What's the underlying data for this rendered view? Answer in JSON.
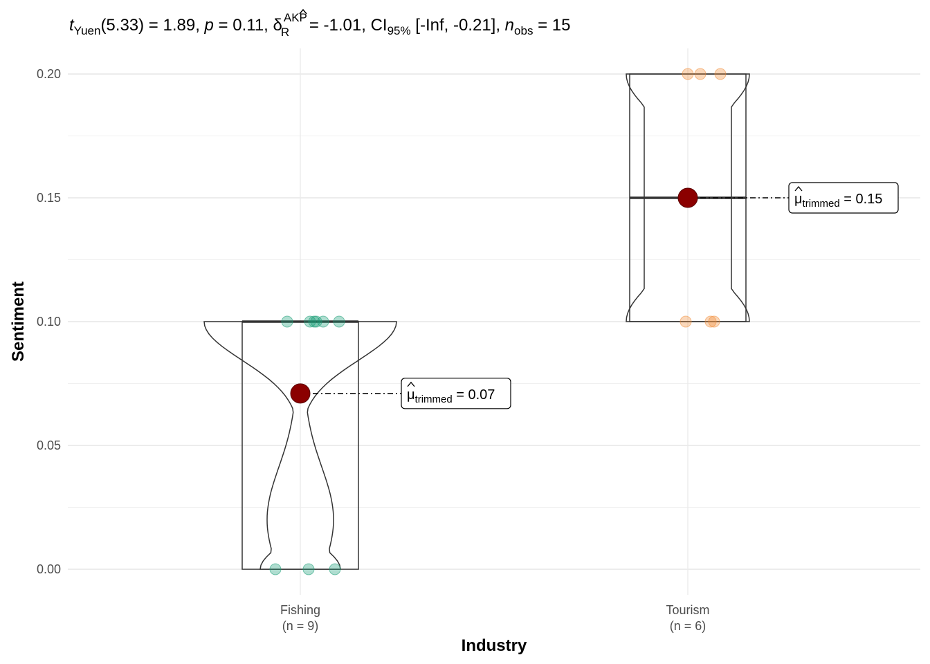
{
  "chart_data": {
    "type": "box-violin",
    "subtitle_parts": {
      "t": "t",
      "t_sub": "Yuen",
      "t_df": "(5.33) = 1.89, ",
      "p": "p",
      "p_val": " = 0.11, ",
      "delta": "δ",
      "delta_sup": "AKP",
      "delta_sub": "R",
      "delta_val": " = -1.01, CI",
      "ci_sub": "95%",
      "ci_val": " [-Inf, -0.21], ",
      "n": "n",
      "n_sub": "obs",
      "n_val": " = 15"
    },
    "xlabel": "Industry",
    "ylabel": "Sentiment",
    "ylim": [
      0,
      0.2
    ],
    "yticks": [
      "0.00",
      "0.05",
      "0.10",
      "0.15",
      "0.20"
    ],
    "ytick_values": [
      0,
      0.05,
      0.1,
      0.15,
      0.2
    ],
    "groups": [
      {
        "name": "Fishing",
        "n_label": "(n = 9)",
        "color": "#1B9E77",
        "points": [
          0.1,
          0.1,
          0.1,
          0.1,
          0.1,
          0.1,
          0.0,
          0.0,
          0.0
        ],
        "box": {
          "min": 0.0,
          "q1": 0.0,
          "median": 0.1,
          "q3": 0.1,
          "max": 0.1
        },
        "trimmed_mean": 0.071,
        "annotation_mu": "μ",
        "annotation_sub": "trimmed",
        "annotation_val": " = 0.07"
      },
      {
        "name": "Tourism",
        "n_label": "(n = 6)",
        "color": "#F28E3B",
        "points": [
          0.2,
          0.2,
          0.2,
          0.1,
          0.1,
          0.1
        ],
        "box": {
          "min": 0.1,
          "q1": 0.1,
          "median": 0.15,
          "q3": 0.2,
          "max": 0.2
        },
        "trimmed_mean": 0.15,
        "annotation_mu": "μ",
        "annotation_sub": "trimmed",
        "annotation_val": " = 0.15"
      }
    ],
    "mean_color": "#8B0000",
    "grid": true
  }
}
